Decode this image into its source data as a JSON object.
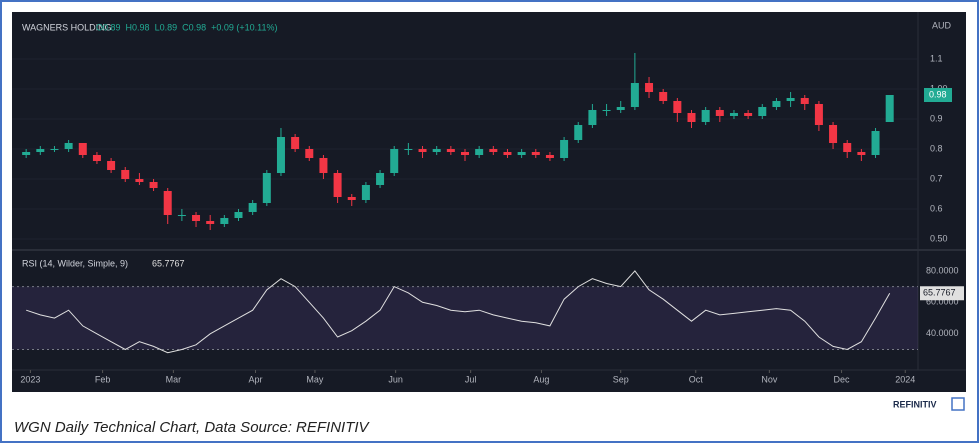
{
  "chart_data": {
    "type": "candlestick",
    "symbol": "WAGNERS HOLDING",
    "ohlc_legend": [
      "O0.89",
      "H0.98",
      "L0.89",
      "C0.98",
      "+0.09 (+10.11%)"
    ],
    "currency": "AUD",
    "price_tag": "0.98",
    "up_color": "#22ab94",
    "down_color": "#f23645",
    "x": [
      0,
      1,
      2,
      3,
      4,
      5,
      6,
      7,
      8,
      9,
      10,
      11,
      12,
      13,
      14,
      15,
      16,
      17,
      18,
      19,
      20,
      21,
      22,
      23,
      24,
      25,
      26,
      27,
      28,
      29,
      30,
      31,
      32,
      33,
      34,
      35,
      36,
      37,
      38,
      39,
      40,
      41,
      42,
      43,
      44,
      45,
      46,
      47,
      48,
      49,
      50,
      51,
      52,
      53,
      54,
      55,
      56,
      57,
      58,
      59,
      60,
      61
    ],
    "open": [
      0.78,
      0.79,
      0.8,
      0.8,
      0.82,
      0.78,
      0.76,
      0.73,
      0.7,
      0.69,
      0.66,
      0.58,
      0.58,
      0.56,
      0.55,
      0.57,
      0.59,
      0.62,
      0.72,
      0.84,
      0.8,
      0.77,
      0.72,
      0.64,
      0.63,
      0.68,
      0.72,
      0.8,
      0.8,
      0.79,
      0.8,
      0.79,
      0.78,
      0.8,
      0.79,
      0.78,
      0.79,
      0.78,
      0.77,
      0.83,
      0.88,
      0.93,
      0.93,
      0.94,
      1.02,
      0.99,
      0.96,
      0.92,
      0.89,
      0.93,
      0.91,
      0.92,
      0.91,
      0.94,
      0.96,
      0.97,
      0.95,
      0.88,
      0.82,
      0.79,
      0.78,
      0.89
    ],
    "high": [
      0.8,
      0.81,
      0.81,
      0.83,
      0.82,
      0.79,
      0.77,
      0.74,
      0.72,
      0.7,
      0.67,
      0.6,
      0.59,
      0.58,
      0.58,
      0.6,
      0.63,
      0.73,
      0.87,
      0.85,
      0.81,
      0.78,
      0.73,
      0.65,
      0.69,
      0.73,
      0.81,
      0.82,
      0.81,
      0.81,
      0.81,
      0.8,
      0.81,
      0.81,
      0.8,
      0.8,
      0.8,
      0.79,
      0.84,
      0.89,
      0.95,
      0.95,
      0.96,
      1.12,
      1.04,
      1.0,
      0.97,
      0.93,
      0.94,
      0.94,
      0.93,
      0.93,
      0.95,
      0.97,
      0.99,
      0.98,
      0.96,
      0.89,
      0.83,
      0.8,
      0.87,
      0.98
    ],
    "low": [
      0.77,
      0.78,
      0.79,
      0.79,
      0.77,
      0.75,
      0.72,
      0.69,
      0.68,
      0.66,
      0.55,
      0.56,
      0.54,
      0.53,
      0.54,
      0.56,
      0.58,
      0.61,
      0.71,
      0.79,
      0.76,
      0.7,
      0.62,
      0.61,
      0.62,
      0.67,
      0.71,
      0.78,
      0.77,
      0.78,
      0.78,
      0.76,
      0.77,
      0.78,
      0.77,
      0.77,
      0.77,
      0.76,
      0.76,
      0.82,
      0.87,
      0.91,
      0.92,
      0.93,
      0.97,
      0.95,
      0.89,
      0.87,
      0.88,
      0.89,
      0.9,
      0.9,
      0.9,
      0.93,
      0.94,
      0.93,
      0.86,
      0.8,
      0.77,
      0.76,
      0.77,
      0.89
    ],
    "close": [
      0.79,
      0.8,
      0.8,
      0.82,
      0.78,
      0.76,
      0.73,
      0.7,
      0.69,
      0.67,
      0.58,
      0.58,
      0.56,
      0.55,
      0.57,
      0.59,
      0.62,
      0.72,
      0.84,
      0.8,
      0.77,
      0.72,
      0.64,
      0.63,
      0.68,
      0.72,
      0.8,
      0.8,
      0.79,
      0.8,
      0.79,
      0.78,
      0.8,
      0.79,
      0.78,
      0.79,
      0.78,
      0.77,
      0.83,
      0.88,
      0.93,
      0.93,
      0.94,
      1.02,
      0.99,
      0.96,
      0.92,
      0.89,
      0.93,
      0.91,
      0.92,
      0.91,
      0.94,
      0.96,
      0.97,
      0.95,
      0.88,
      0.82,
      0.79,
      0.78,
      0.86,
      0.98
    ],
    "xlim": [
      -1,
      63
    ],
    "xticks": [
      {
        "value": 0.3,
        "label": "2023"
      },
      {
        "value": 5.4,
        "label": "Feb"
      },
      {
        "value": 10.4,
        "label": "Mar"
      },
      {
        "value": 16.2,
        "label": "Apr"
      },
      {
        "value": 20.4,
        "label": "May"
      },
      {
        "value": 26.1,
        "label": "Jun"
      },
      {
        "value": 31.4,
        "label": "Jul"
      },
      {
        "value": 36.4,
        "label": "Aug"
      },
      {
        "value": 42.0,
        "label": "Sep"
      },
      {
        "value": 47.3,
        "label": "Oct"
      },
      {
        "value": 52.5,
        "label": "Nov"
      },
      {
        "value": 57.6,
        "label": "Dec"
      },
      {
        "value": 62.1,
        "label": "2024"
      }
    ],
    "ylim": [
      0.47,
      1.23
    ],
    "yticks": [
      {
        "value": 0.5,
        "label": "0.50"
      },
      0.6,
      0.7,
      0.8,
      0.9,
      {
        "value": 1.0,
        "label": "1.00"
      },
      1.1
    ],
    "rsi": {
      "type": "line",
      "title": "RSI (14, Wilder, Simple, 9)",
      "color": "#e0e0e0",
      "values": [
        55,
        52,
        50,
        55,
        45,
        40,
        35,
        30,
        35,
        32,
        28,
        30,
        33,
        40,
        45,
        50,
        55,
        68,
        75,
        70,
        60,
        50,
        38,
        42,
        48,
        55,
        70,
        66,
        60,
        58,
        55,
        54,
        55,
        52,
        50,
        48,
        47,
        45,
        62,
        70,
        75,
        72,
        70,
        80,
        68,
        62,
        55,
        48,
        55,
        52,
        53,
        54,
        55,
        56,
        55,
        48,
        38,
        32,
        30,
        35,
        50,
        65.7767
      ],
      "last_label": "65.7767",
      "ylim": [
        17,
        92
      ],
      "yticks": [
        {
          "value": 40,
          "label": "40.0000"
        },
        {
          "value": 60,
          "label": "60.0000"
        },
        {
          "value": 80,
          "label": "80.0000"
        }
      ],
      "bands": [
        30,
        70
      ],
      "band_color": "#7e57c2"
    }
  },
  "footer": {
    "brand": "REFINITIV",
    "caption": "WGN Daily Technical Chart, Data Source: REFINITIV"
  }
}
